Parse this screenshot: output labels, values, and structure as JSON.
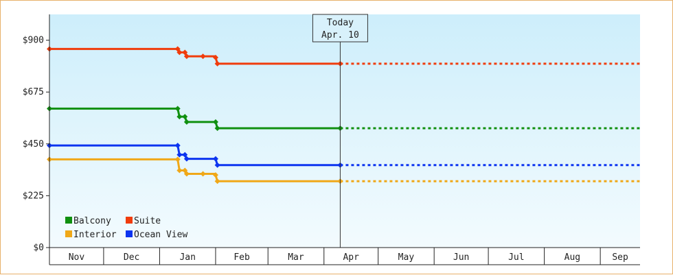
{
  "chart_data": {
    "type": "line",
    "step": true,
    "title": "",
    "xlabel": "",
    "ylabel": "",
    "ylim": [
      0,
      1012
    ],
    "yticks": [
      0,
      225,
      450,
      675,
      900
    ],
    "ytick_labels": [
      "$0",
      "$225",
      "$450",
      "$675",
      "$900"
    ],
    "x_months": [
      "Nov",
      "Dec",
      "Jan",
      "Feb",
      "Mar",
      "Apr",
      "May",
      "Jun",
      "Jul",
      "Aug",
      "Sep"
    ],
    "xlim": [
      "2023-11-01",
      "2024-09-23"
    ],
    "grid": false,
    "legend_position": "bottom-left",
    "today": {
      "date": "2024-04-10",
      "line1": "Today",
      "line2": "Apr. 10"
    },
    "series": [
      {
        "name": "Balcony",
        "color": "#109010",
        "points": [
          {
            "date": "2023-11-01",
            "value": 603
          },
          {
            "date": "2024-01-11",
            "value": 603
          },
          {
            "date": "2024-01-12",
            "value": 568
          },
          {
            "date": "2024-01-15",
            "value": 568
          },
          {
            "date": "2024-01-16",
            "value": 545
          },
          {
            "date": "2024-02-01",
            "value": 545
          },
          {
            "date": "2024-02-02",
            "value": 518
          },
          {
            "date": "2024-04-10",
            "value": 518
          }
        ],
        "projection_end": "2024-09-23"
      },
      {
        "name": "Suite",
        "color": "#f03c0c",
        "points": [
          {
            "date": "2023-11-01",
            "value": 862
          },
          {
            "date": "2024-01-11",
            "value": 862
          },
          {
            "date": "2024-01-12",
            "value": 847
          },
          {
            "date": "2024-01-15",
            "value": 847
          },
          {
            "date": "2024-01-16",
            "value": 830
          },
          {
            "date": "2024-01-25",
            "value": 830
          },
          {
            "date": "2024-02-01",
            "value": 825
          },
          {
            "date": "2024-02-02",
            "value": 798
          },
          {
            "date": "2024-04-10",
            "value": 798
          }
        ],
        "projection_end": "2024-09-23"
      },
      {
        "name": "Interior",
        "color": "#f0a818",
        "points": [
          {
            "date": "2023-11-01",
            "value": 383
          },
          {
            "date": "2024-01-11",
            "value": 383
          },
          {
            "date": "2024-01-12",
            "value": 335
          },
          {
            "date": "2024-01-15",
            "value": 335
          },
          {
            "date": "2024-01-16",
            "value": 320
          },
          {
            "date": "2024-01-25",
            "value": 320
          },
          {
            "date": "2024-02-01",
            "value": 315
          },
          {
            "date": "2024-02-02",
            "value": 288
          },
          {
            "date": "2024-04-10",
            "value": 288
          }
        ],
        "projection_end": "2024-09-23"
      },
      {
        "name": "Ocean View",
        "color": "#0c34f0",
        "points": [
          {
            "date": "2023-11-01",
            "value": 443
          },
          {
            "date": "2024-01-11",
            "value": 443
          },
          {
            "date": "2024-01-12",
            "value": 403
          },
          {
            "date": "2024-01-15",
            "value": 403
          },
          {
            "date": "2024-01-16",
            "value": 385
          },
          {
            "date": "2024-02-01",
            "value": 385
          },
          {
            "date": "2024-02-02",
            "value": 358
          },
          {
            "date": "2024-04-10",
            "value": 358
          }
        ],
        "projection_end": "2024-09-23"
      }
    ]
  },
  "colors": {
    "frame_border": "#e8b06a",
    "plot_bg_top": "#cdeefb",
    "plot_bg_bottom": "#f3fbfe",
    "axis": "#222222"
  }
}
